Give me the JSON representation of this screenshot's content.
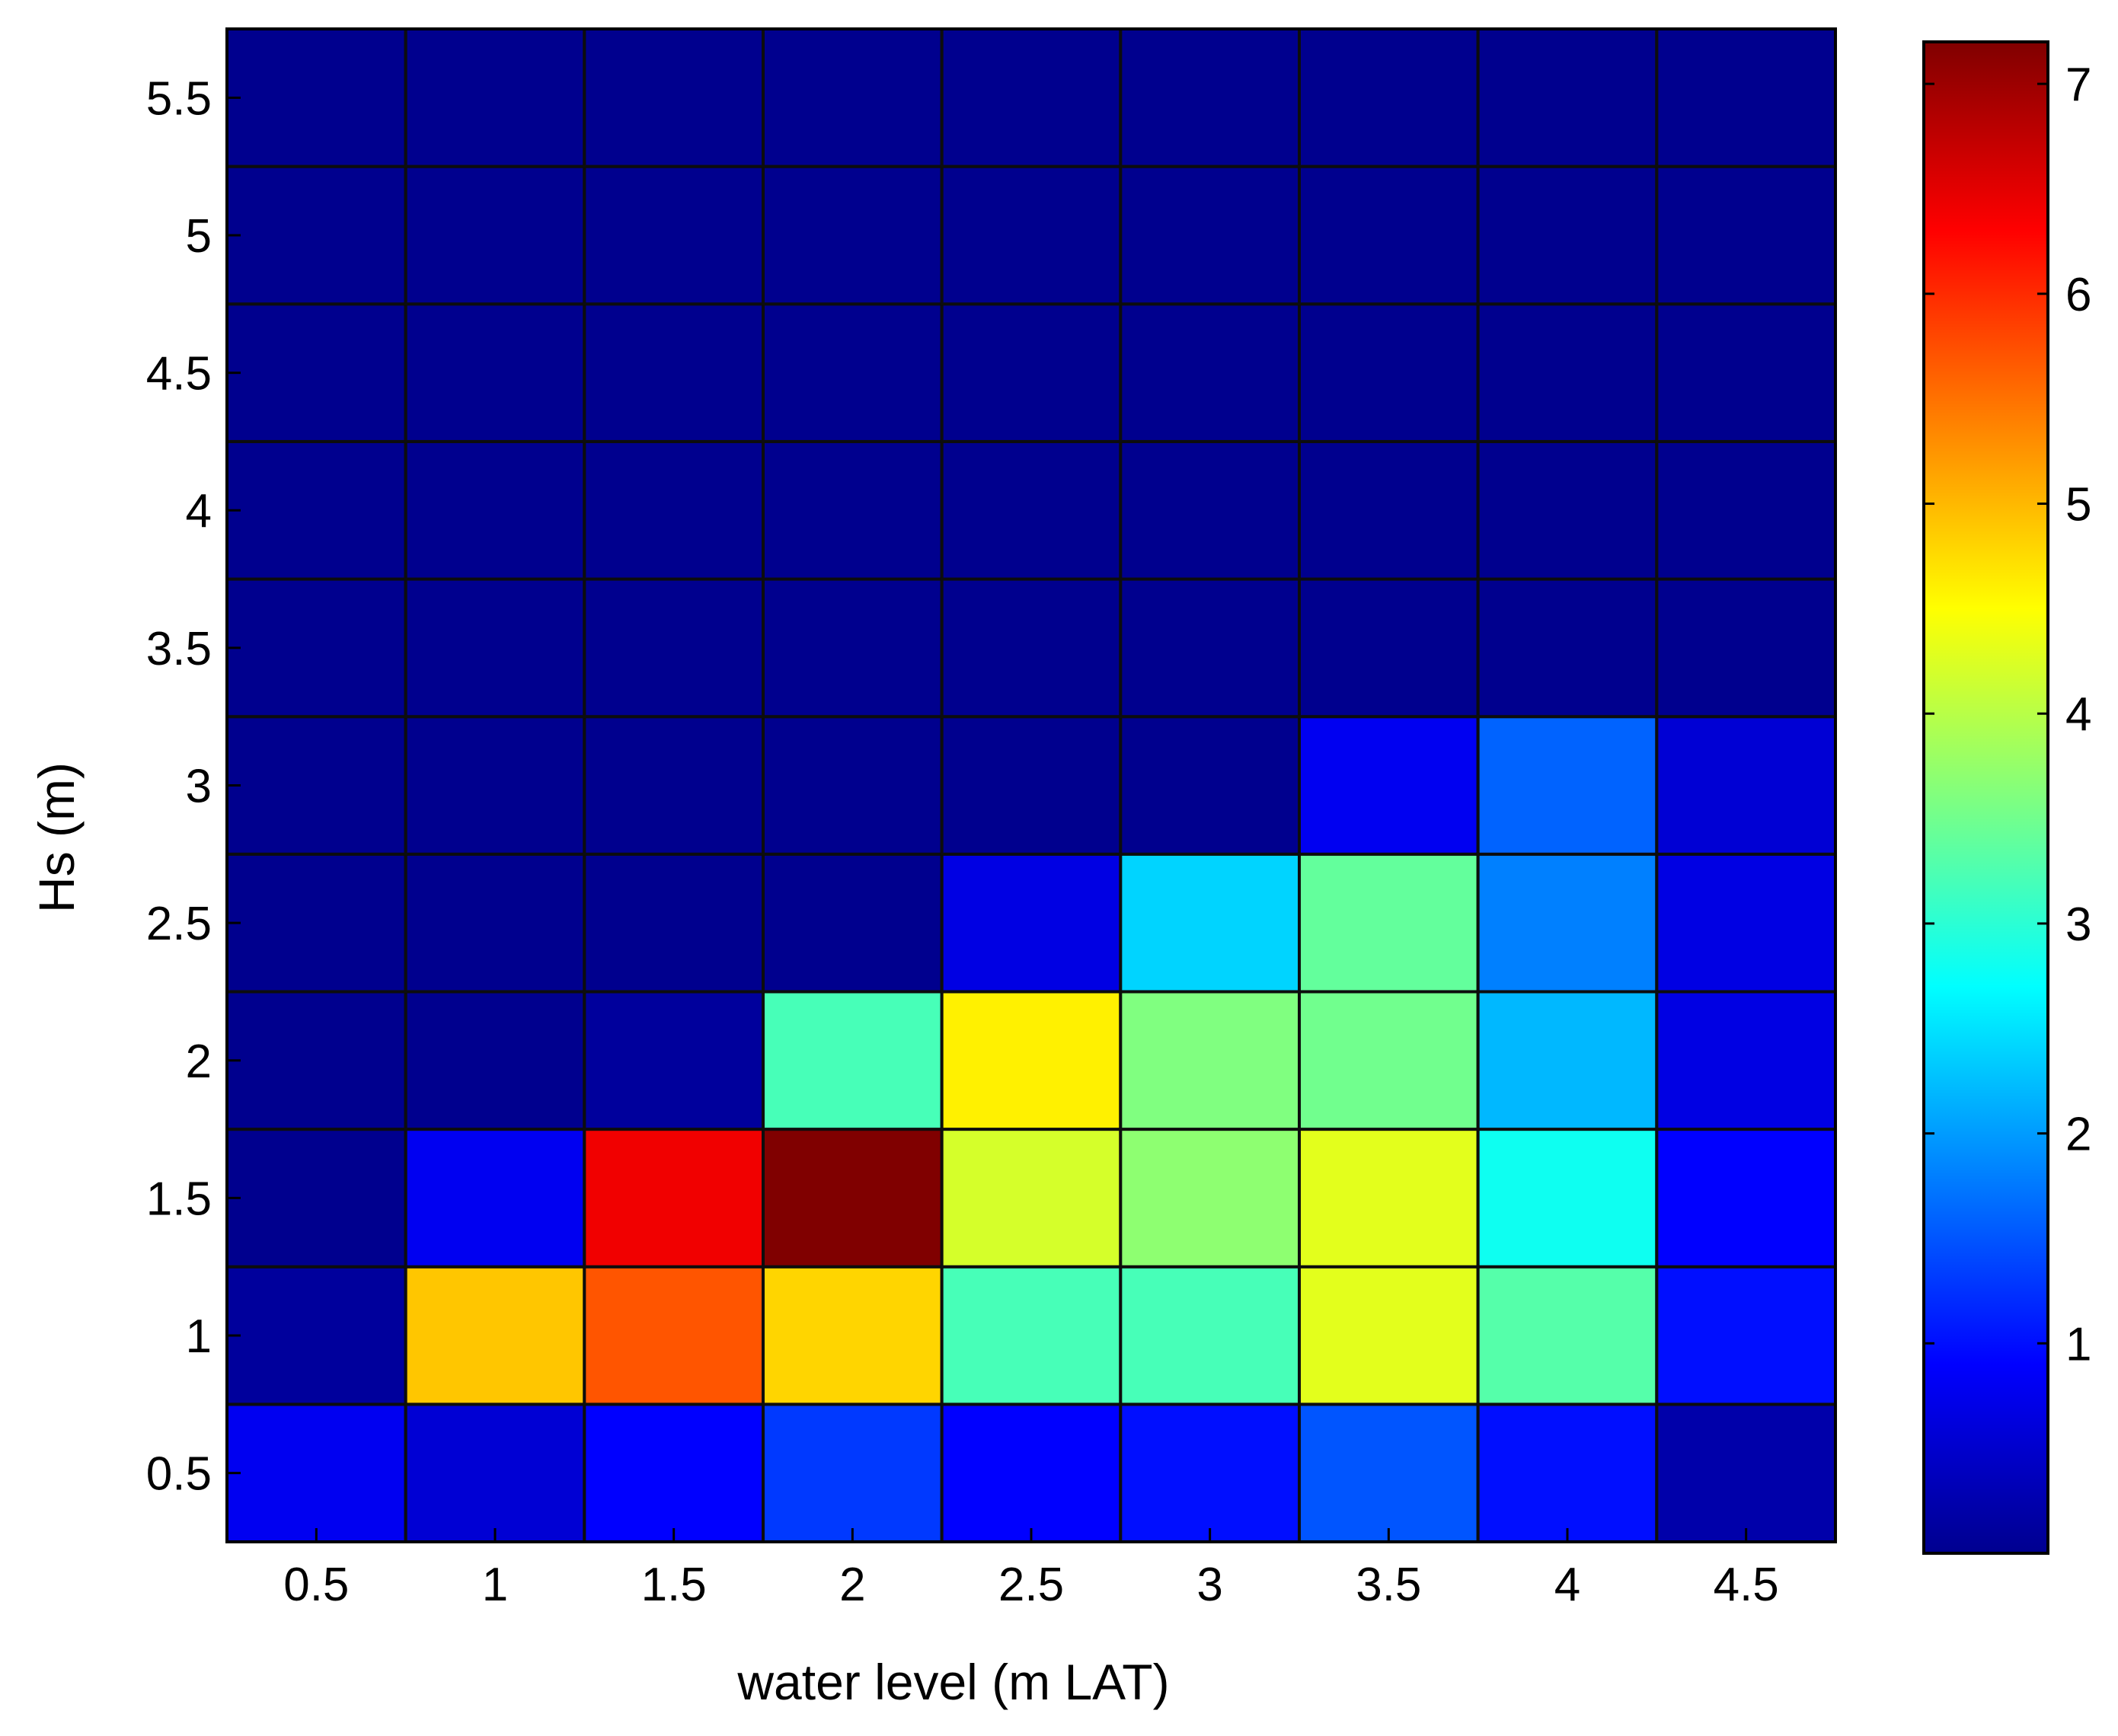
{
  "chart_data": {
    "type": "heatmap",
    "title": "",
    "xlabel": "water level (m LAT)",
    "ylabel": "Hs (m)",
    "x": [
      0.5,
      1,
      1.5,
      2,
      2.5,
      3,
      3.5,
      4,
      4.5
    ],
    "y": [
      0.5,
      1,
      1.5,
      2,
      2.5,
      3,
      3.5,
      4,
      4.5,
      5,
      5.5
    ],
    "x_tick_labels": [
      "0.5",
      "1",
      "1.5",
      "2",
      "2.5",
      "3",
      "3.5",
      "4",
      "4.5"
    ],
    "y_tick_labels": [
      "0.5",
      "1",
      "1.5",
      "2",
      "2.5",
      "3",
      "3.5",
      "4",
      "4.5",
      "5",
      "5.5"
    ],
    "values": [
      [
        0.8,
        0.6,
        0.9,
        1.3,
        0.9,
        1.0,
        1.5,
        1.0,
        0.3
      ],
      [
        0.2,
        4.9,
        5.7,
        4.8,
        3.2,
        3.2,
        4.3,
        3.3,
        1.0
      ],
      [
        0.1,
        0.8,
        6.4,
        7.2,
        4.2,
        3.7,
        4.3,
        2.8,
        0.9
      ],
      [
        0.1,
        0.1,
        0.2,
        3.2,
        4.6,
        3.6,
        3.5,
        2.2,
        0.7
      ],
      [
        0.1,
        0.1,
        0.1,
        0.1,
        0.7,
        2.4,
        3.4,
        1.8,
        0.7
      ],
      [
        0.1,
        0.1,
        0.1,
        0.1,
        0.1,
        0.1,
        0.8,
        1.6,
        0.6
      ],
      [
        0.1,
        0.1,
        0.1,
        0.1,
        0.1,
        0.1,
        0.1,
        0.1,
        0.1
      ],
      [
        0.1,
        0.1,
        0.1,
        0.1,
        0.1,
        0.1,
        0.1,
        0.1,
        0.1
      ],
      [
        0.1,
        0.1,
        0.1,
        0.1,
        0.1,
        0.1,
        0.1,
        0.1,
        0.1
      ],
      [
        0.1,
        0.1,
        0.1,
        0.1,
        0.1,
        0.1,
        0.1,
        0.1,
        0.1
      ],
      [
        0.1,
        0.1,
        0.1,
        0.1,
        0.1,
        0.1,
        0.1,
        0.1,
        0.1
      ]
    ],
    "colorbar": {
      "range": [
        0,
        7.2
      ],
      "ticks": [
        1,
        2,
        3,
        4,
        5,
        6,
        7
      ],
      "colormap": "jet"
    },
    "grid": true,
    "colors": {
      "cell_border": "#0d0d0d",
      "axis": "#000000"
    }
  }
}
